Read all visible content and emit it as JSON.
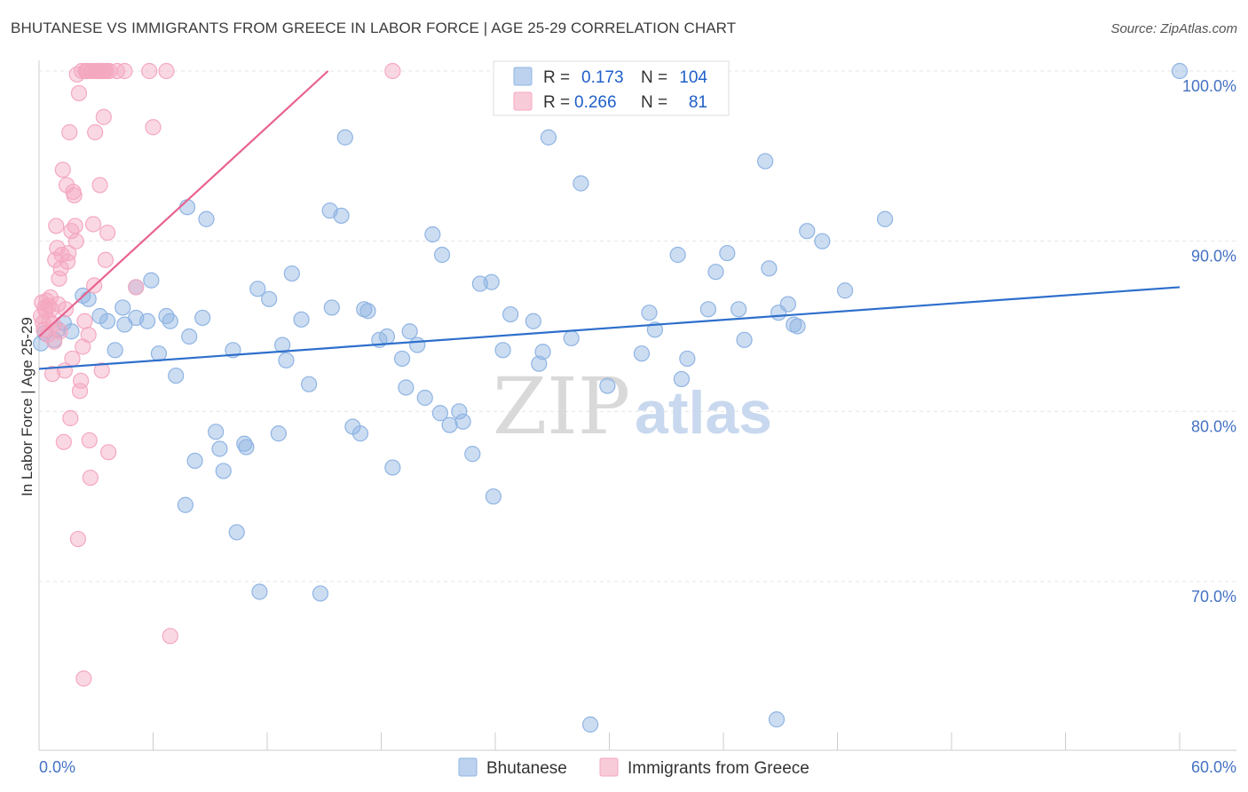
{
  "title": "BHUTANESE VS IMMIGRANTS FROM GREECE IN LABOR FORCE | AGE 25-29 CORRELATION CHART",
  "source": "Source: ZipAtlas.com",
  "watermark": {
    "zip": "ZIP",
    "atlas": "atlas"
  },
  "chart_data": {
    "type": "scatter",
    "title": "BHUTANESE VS IMMIGRANTS FROM GREECE IN LABOR FORCE | AGE 25-29 CORRELATION CHART",
    "xlabel": "",
    "ylabel": "In Labor Force | Age 25-29",
    "xlim": [
      0,
      60
    ],
    "ylim": [
      60.5,
      101.5
    ],
    "x_tick_labels": [
      "0.0%",
      "60.0%"
    ],
    "y_ticks": [
      70,
      80,
      90,
      100
    ],
    "y_tick_labels": [
      "70.0%",
      "80.0%",
      "90.0%",
      "100.0%"
    ],
    "grid": true,
    "legend": [
      {
        "name": "Bhutanese",
        "r_label": "R =",
        "r": "0.173",
        "n_label": "N =",
        "n": "104",
        "color": "#8fb4e3",
        "line": "#2e6fcc"
      },
      {
        "name": "Immigrants from Greece",
        "r_label": "R =",
        "r": "0.266",
        "n_label": "N =",
        "n": "81",
        "color": "#f4a8c0",
        "line": "#e8628f"
      }
    ],
    "series": [
      {
        "name": "Bhutanese",
        "trend": {
          "x": [
            0,
            60
          ],
          "y": [
            82.5,
            87.3
          ]
        },
        "points": [
          [
            0.1,
            84.0
          ],
          [
            0.3,
            84.6
          ],
          [
            0.8,
            84.2
          ],
          [
            1.0,
            84.8
          ],
          [
            1.3,
            85.2
          ],
          [
            1.7,
            84.7
          ],
          [
            2.3,
            86.8
          ],
          [
            2.6,
            86.6
          ],
          [
            3.2,
            85.6
          ],
          [
            3.6,
            85.3
          ],
          [
            4.0,
            83.6
          ],
          [
            4.4,
            86.1
          ],
          [
            4.5,
            85.1
          ],
          [
            5.1,
            85.5
          ],
          [
            5.1,
            87.3
          ],
          [
            5.7,
            85.3
          ],
          [
            5.9,
            87.7
          ],
          [
            6.3,
            83.4
          ],
          [
            6.7,
            85.6
          ],
          [
            6.9,
            85.3
          ],
          [
            7.2,
            82.1
          ],
          [
            7.7,
            74.5
          ],
          [
            7.8,
            92.0
          ],
          [
            7.9,
            84.4
          ],
          [
            8.2,
            77.1
          ],
          [
            8.6,
            85.5
          ],
          [
            8.8,
            91.3
          ],
          [
            9.3,
            78.8
          ],
          [
            9.5,
            77.8
          ],
          [
            9.7,
            76.5
          ],
          [
            10.2,
            83.6
          ],
          [
            10.4,
            72.9
          ],
          [
            10.8,
            78.1
          ],
          [
            10.9,
            77.9
          ],
          [
            11.5,
            87.2
          ],
          [
            11.6,
            69.4
          ],
          [
            12.1,
            86.6
          ],
          [
            12.6,
            78.7
          ],
          [
            12.8,
            83.9
          ],
          [
            13.0,
            83.0
          ],
          [
            13.3,
            88.1
          ],
          [
            13.8,
            85.4
          ],
          [
            14.2,
            81.6
          ],
          [
            14.8,
            69.3
          ],
          [
            15.3,
            91.8
          ],
          [
            15.4,
            86.1
          ],
          [
            15.9,
            91.5
          ],
          [
            16.1,
            96.1
          ],
          [
            16.5,
            79.1
          ],
          [
            16.9,
            78.7
          ],
          [
            17.1,
            86.0
          ],
          [
            17.3,
            85.9
          ],
          [
            17.9,
            84.2
          ],
          [
            18.3,
            84.4
          ],
          [
            18.6,
            76.7
          ],
          [
            19.1,
            83.1
          ],
          [
            19.3,
            81.4
          ],
          [
            19.5,
            84.7
          ],
          [
            19.9,
            83.9
          ],
          [
            20.3,
            80.8
          ],
          [
            20.7,
            90.4
          ],
          [
            21.1,
            79.9
          ],
          [
            21.2,
            89.2
          ],
          [
            21.6,
            79.2
          ],
          [
            22.1,
            80.0
          ],
          [
            22.3,
            79.4
          ],
          [
            22.8,
            77.5
          ],
          [
            23.2,
            87.5
          ],
          [
            23.8,
            87.6
          ],
          [
            23.9,
            75.0
          ],
          [
            24.4,
            83.6
          ],
          [
            24.8,
            85.7
          ],
          [
            26.0,
            85.3
          ],
          [
            26.3,
            82.8
          ],
          [
            26.5,
            83.5
          ],
          [
            26.8,
            96.1
          ],
          [
            28.0,
            84.3
          ],
          [
            28.5,
            93.4
          ],
          [
            29.0,
            61.6
          ],
          [
            29.9,
            81.5
          ],
          [
            31.7,
            83.4
          ],
          [
            32.1,
            85.8
          ],
          [
            32.4,
            84.8
          ],
          [
            33.6,
            89.2
          ],
          [
            33.8,
            81.9
          ],
          [
            34.1,
            83.1
          ],
          [
            35.2,
            86.0
          ],
          [
            35.6,
            88.2
          ],
          [
            36.2,
            89.3
          ],
          [
            36.8,
            86.0
          ],
          [
            37.1,
            84.2
          ],
          [
            38.2,
            94.7
          ],
          [
            38.4,
            88.4
          ],
          [
            38.8,
            61.9
          ],
          [
            38.9,
            85.8
          ],
          [
            39.4,
            86.3
          ],
          [
            39.7,
            85.1
          ],
          [
            39.9,
            85.0
          ],
          [
            40.4,
            90.6
          ],
          [
            41.2,
            90.0
          ],
          [
            42.4,
            87.1
          ],
          [
            44.5,
            91.3
          ],
          [
            60.0,
            100.0
          ]
        ]
      },
      {
        "name": "Immigrants from Greece",
        "trend": {
          "x": [
            0,
            15.2
          ],
          "y": [
            84.4,
            100.0
          ]
        },
        "points": [
          [
            0.1,
            85.6
          ],
          [
            0.15,
            86.4
          ],
          [
            0.2,
            85.2
          ],
          [
            0.25,
            84.8
          ],
          [
            0.3,
            86.1
          ],
          [
            0.35,
            85.9
          ],
          [
            0.4,
            86.5
          ],
          [
            0.45,
            84.5
          ],
          [
            0.5,
            86.2
          ],
          [
            0.55,
            85.3
          ],
          [
            0.6,
            86.7
          ],
          [
            0.65,
            86.0
          ],
          [
            0.7,
            82.2
          ],
          [
            0.75,
            85.1
          ],
          [
            0.8,
            84.1
          ],
          [
            0.85,
            88.9
          ],
          [
            0.9,
            90.9
          ],
          [
            0.95,
            89.6
          ],
          [
            1.0,
            86.3
          ],
          [
            1.05,
            87.8
          ],
          [
            1.1,
            84.7
          ],
          [
            1.15,
            88.4
          ],
          [
            1.2,
            89.2
          ],
          [
            1.25,
            94.2
          ],
          [
            1.3,
            78.2
          ],
          [
            1.35,
            82.4
          ],
          [
            1.4,
            86.0
          ],
          [
            1.45,
            93.3
          ],
          [
            1.5,
            88.8
          ],
          [
            1.55,
            89.3
          ],
          [
            1.6,
            96.4
          ],
          [
            1.65,
            79.6
          ],
          [
            1.7,
            90.6
          ],
          [
            1.75,
            83.1
          ],
          [
            1.8,
            92.9
          ],
          [
            1.85,
            92.7
          ],
          [
            1.9,
            90.9
          ],
          [
            1.95,
            90.0
          ],
          [
            2.0,
            99.8
          ],
          [
            2.05,
            72.5
          ],
          [
            2.1,
            98.7
          ],
          [
            2.15,
            81.2
          ],
          [
            2.2,
            81.8
          ],
          [
            2.25,
            100.0
          ],
          [
            2.3,
            83.8
          ],
          [
            2.35,
            64.3
          ],
          [
            2.4,
            85.3
          ],
          [
            2.45,
            100.0
          ],
          [
            2.5,
            100.0
          ],
          [
            2.55,
            100.0
          ],
          [
            2.6,
            84.5
          ],
          [
            2.65,
            78.3
          ],
          [
            2.7,
            76.1
          ],
          [
            2.75,
            100.0
          ],
          [
            2.8,
            100.0
          ],
          [
            2.85,
            91.0
          ],
          [
            2.9,
            87.4
          ],
          [
            2.95,
            96.4
          ],
          [
            3.0,
            100.0
          ],
          [
            3.05,
            100.0
          ],
          [
            3.1,
            100.0
          ],
          [
            3.15,
            100.0
          ],
          [
            3.2,
            93.3
          ],
          [
            3.25,
            100.0
          ],
          [
            3.3,
            82.4
          ],
          [
            3.35,
            100.0
          ],
          [
            3.4,
            97.3
          ],
          [
            3.45,
            100.0
          ],
          [
            3.5,
            88.9
          ],
          [
            3.55,
            100.0
          ],
          [
            3.6,
            90.5
          ],
          [
            3.65,
            77.6
          ],
          [
            3.7,
            100.0
          ],
          [
            4.1,
            100.0
          ],
          [
            4.5,
            100.0
          ],
          [
            5.1,
            87.3
          ],
          [
            5.8,
            100.0
          ],
          [
            6.0,
            96.7
          ],
          [
            6.7,
            100.0
          ],
          [
            6.9,
            66.8
          ],
          [
            18.6,
            100.0
          ]
        ]
      }
    ]
  }
}
